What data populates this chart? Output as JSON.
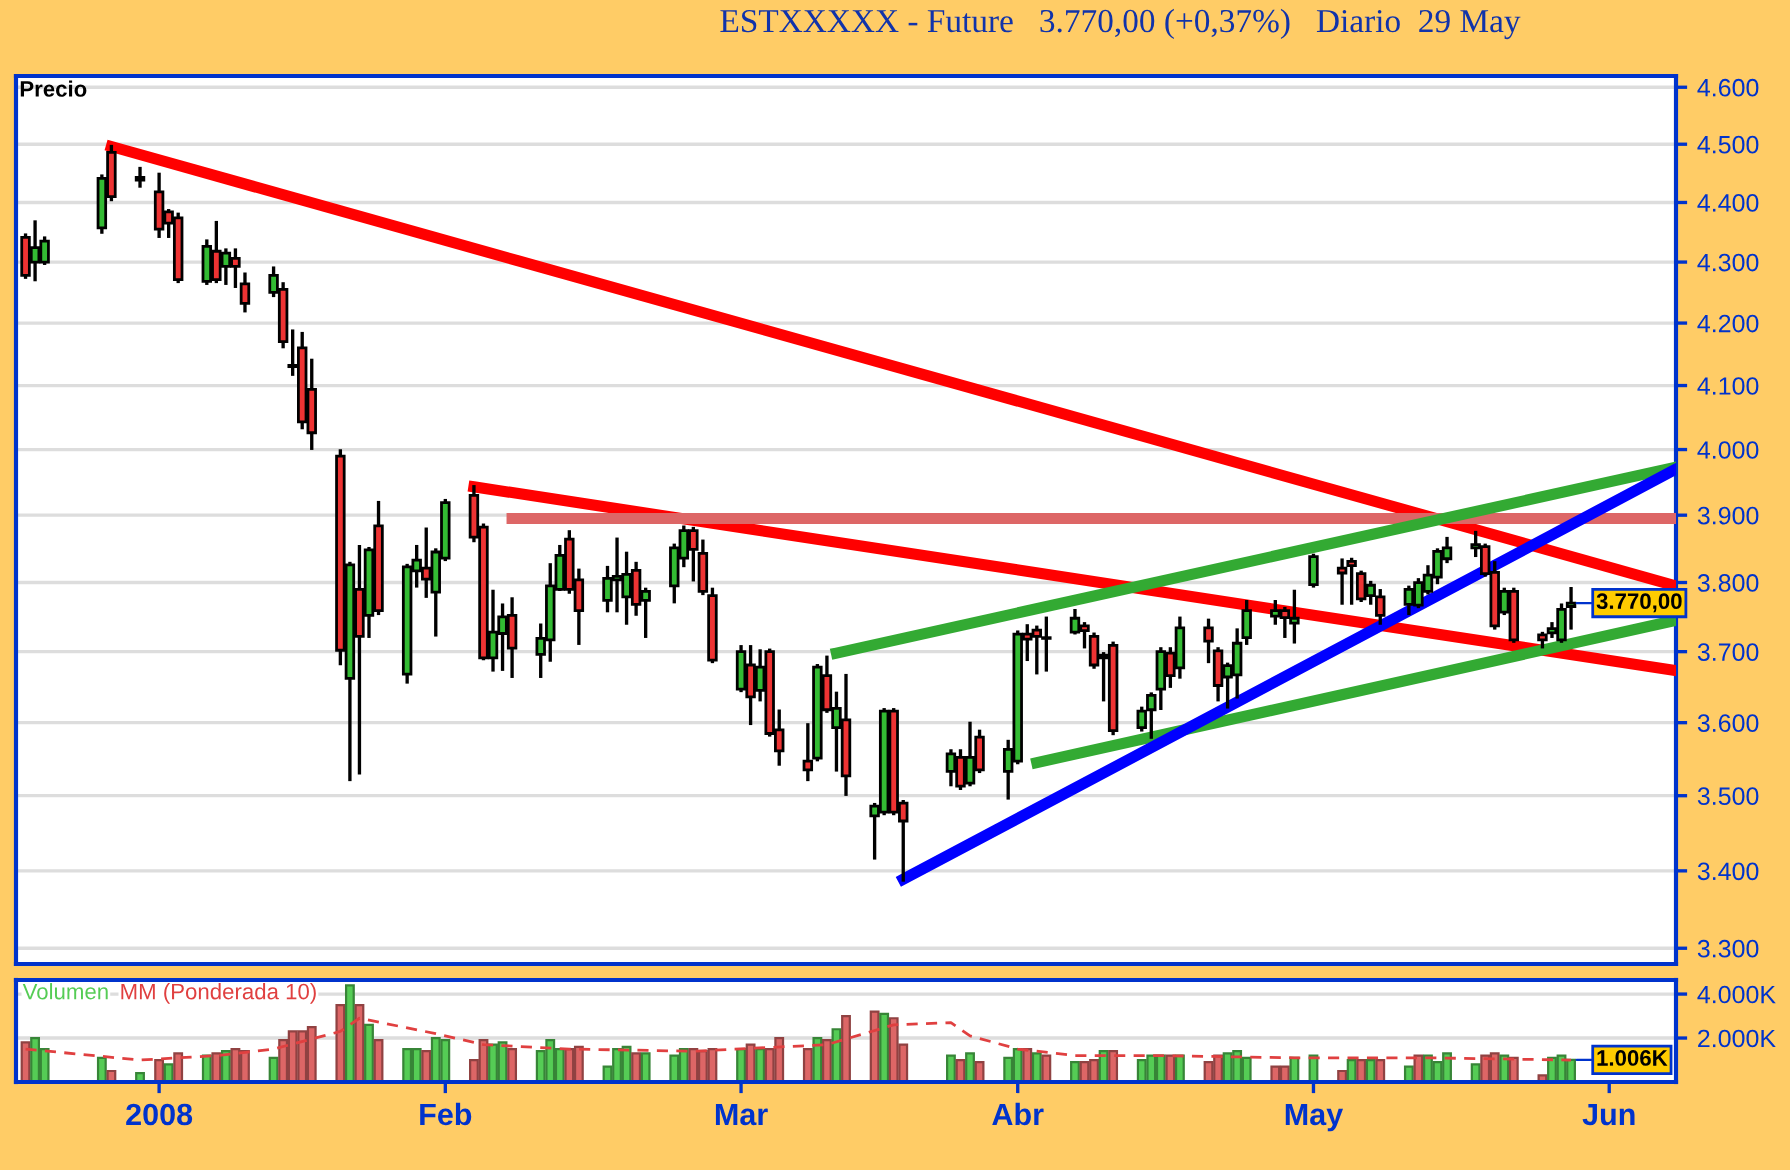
{
  "chart_data": [
    {
      "type": "candlestick",
      "title": "ESTXXXXX - Future   3.770,00 (+0,37%)   Diario  29 May",
      "ylabel": "Precio",
      "log": true,
      "grid": "y",
      "tick_labels": "y",
      "xlim": [
        "2007-12-18",
        "2008-06-09"
      ],
      "ylim": [
        3280,
        4620
      ],
      "yticks": [
        {
          "value": 3300,
          "label": "3.300"
        },
        {
          "value": 3400,
          "label": "3.400"
        },
        {
          "value": 3500,
          "label": "3.500"
        },
        {
          "value": 3600,
          "label": "3.600"
        },
        {
          "value": 3700,
          "label": "3.700"
        },
        {
          "value": 3800,
          "label": "3.800"
        },
        {
          "value": 3900,
          "label": "3.900"
        },
        {
          "value": 4000,
          "label": "4.000"
        },
        {
          "value": 4100,
          "label": "4.100"
        },
        {
          "value": 4200,
          "label": "4.200"
        },
        {
          "value": 4300,
          "label": "4.300"
        },
        {
          "value": 4400,
          "label": "4.400"
        },
        {
          "value": 4500,
          "label": "4.500"
        },
        {
          "value": 4600,
          "label": "4.600"
        }
      ],
      "annotations": [
        {
          "text": "3.770,00",
          "x": "2008-05-29",
          "y": 3770
        }
      ],
      "x": [
        "2007-12-19",
        "2007-12-20",
        "2007-12-21",
        "2007-12-27",
        "2007-12-28",
        "2007-12-31",
        "2008-01-02",
        "2008-01-03",
        "2008-01-04",
        "2008-01-07",
        "2008-01-08",
        "2008-01-09",
        "2008-01-10",
        "2008-01-11",
        "2008-01-14",
        "2008-01-15",
        "2008-01-16",
        "2008-01-17",
        "2008-01-18",
        "2008-01-21",
        "2008-01-22",
        "2008-01-23",
        "2008-01-24",
        "2008-01-25",
        "2008-01-28",
        "2008-01-29",
        "2008-01-30",
        "2008-01-31",
        "2008-02-01",
        "2008-02-04",
        "2008-02-05",
        "2008-02-06",
        "2008-02-07",
        "2008-02-08",
        "2008-02-11",
        "2008-02-12",
        "2008-02-13",
        "2008-02-14",
        "2008-02-15",
        "2008-02-18",
        "2008-02-19",
        "2008-02-20",
        "2008-02-21",
        "2008-02-22",
        "2008-02-25",
        "2008-02-26",
        "2008-02-27",
        "2008-02-28",
        "2008-02-29",
        "2008-03-03",
        "2008-03-04",
        "2008-03-05",
        "2008-03-06",
        "2008-03-07",
        "2008-03-10",
        "2008-03-11",
        "2008-03-12",
        "2008-03-13",
        "2008-03-14",
        "2008-03-17",
        "2008-03-18",
        "2008-03-19",
        "2008-03-20",
        "2008-03-25",
        "2008-03-26",
        "2008-03-27",
        "2008-03-28",
        "2008-03-31",
        "2008-04-01",
        "2008-04-02",
        "2008-04-03",
        "2008-04-04",
        "2008-04-07",
        "2008-04-08",
        "2008-04-09",
        "2008-04-10",
        "2008-04-11",
        "2008-04-14",
        "2008-04-15",
        "2008-04-16",
        "2008-04-17",
        "2008-04-18",
        "2008-04-21",
        "2008-04-22",
        "2008-04-23",
        "2008-04-24",
        "2008-04-25",
        "2008-04-28",
        "2008-04-29",
        "2008-04-30",
        "2008-05-02",
        "2008-05-05",
        "2008-05-06",
        "2008-05-07",
        "2008-05-08",
        "2008-05-09",
        "2008-05-12",
        "2008-05-13",
        "2008-05-14",
        "2008-05-15",
        "2008-05-16",
        "2008-05-19",
        "2008-05-20",
        "2008-05-21",
        "2008-05-22",
        "2008-05-23",
        "2008-05-26",
        "2008-05-27",
        "2008-05-28",
        "2008-05-29"
      ],
      "series": [
        {
          "colors": [
            "#ee3333",
            "#33bb33",
            "#33bb33",
            "#33bb33",
            "#ee3333",
            "#33bb33",
            "#ee3333",
            "#ee3333",
            "#ee3333",
            "#33bb33",
            "#ee3333",
            "#33bb33",
            "#ee3333",
            "#ee3333",
            "#33bb33",
            "#ee3333",
            "#ee3333",
            "#ee3333",
            "#ee3333",
            "#ee3333",
            "#33bb33",
            "#ee3333",
            "#33bb33",
            "#ee3333",
            "#33bb33",
            "#33bb33",
            "#ee3333",
            "#33bb33",
            "#33bb33",
            "#ee3333",
            "#ee3333",
            "#33bb33",
            "#33bb33",
            "#ee3333",
            "#33bb33",
            "#33bb33",
            "#33bb33",
            "#ee3333",
            "#ee3333",
            "#33bb33",
            "#33bb33",
            "#33bb33",
            "#ee3333",
            "#33bb33",
            "#33bb33",
            "#33bb33",
            "#ee3333",
            "#ee3333",
            "#ee3333",
            "#33bb33",
            "#ee3333",
            "#33bb33",
            "#ee3333",
            "#ee3333",
            "#ee3333",
            "#33bb33",
            "#ee3333",
            "#33bb33",
            "#ee3333",
            "#33bb33",
            "#33bb33",
            "#ee3333",
            "#ee3333",
            "#33bb33",
            "#ee3333",
            "#33bb33",
            "#ee3333",
            "#33bb33",
            "#33bb33",
            "#ee3333",
            "#ee3333",
            "#33bb33",
            "#33bb33",
            "#ee3333",
            "#ee3333",
            "#ee3333",
            "#ee3333",
            "#33bb33",
            "#33bb33",
            "#33bb33",
            "#ee3333",
            "#33bb33",
            "#ee3333",
            "#ee3333",
            "#33bb33",
            "#33bb33",
            "#33bb33",
            "#33bb33",
            "#ee3333",
            "#33bb33",
            "#33bb33",
            "#ee3333",
            "#ee3333",
            "#ee3333",
            "#33bb33",
            "#ee3333",
            "#33bb33",
            "#33bb33",
            "#33bb33",
            "#33bb33",
            "#33bb33",
            "#33bb33",
            "#ee3333",
            "#ee3333",
            "#33bb33",
            "#ee3333",
            "#ee3333",
            "#33bb33",
            "#33bb33",
            "#33bb33"
          ],
          "ohlc": [
            [
              4341,
              4345,
              4275,
              4278
            ],
            [
              4300,
              4367,
              4271,
              4324
            ],
            [
              4300,
              4340,
              4298,
              4335
            ],
            [
              4357,
              4445,
              4350,
              4441
            ],
            [
              4486,
              4496,
              4405,
              4410
            ],
            [
              4438,
              4458,
              4428,
              4443
            ],
            [
              4418,
              4448,
              4343,
              4355
            ],
            [
              4384,
              4386,
              4343,
              4365
            ],
            [
              4374,
              4380,
              4268,
              4271
            ],
            [
              4268,
              4335,
              4265,
              4326
            ],
            [
              4318,
              4366,
              4268,
              4271
            ],
            [
              4293,
              4320,
              4265,
              4315
            ],
            [
              4306,
              4320,
              4260,
              4293
            ],
            [
              4264,
              4280,
              4220,
              4232
            ],
            [
              4250,
              4290,
              4245,
              4278
            ],
            [
              4255,
              4264,
              4162,
              4170
            ],
            [
              4132,
              4187,
              4118,
              4130
            ],
            [
              4160,
              4183,
              4034,
              4043
            ],
            [
              4094,
              4140,
              4002,
              4026
            ],
            [
              3990,
              3998,
              3683,
              3702
            ],
            [
              3662,
              3828,
              3522,
              3826
            ],
            [
              3790,
              3853,
              3531,
              3722
            ],
            [
              3752,
              3850,
              3722,
              3848
            ],
            [
              3884,
              3919,
              3755,
              3759
            ],
            [
              3668,
              3825,
              3657,
              3823
            ],
            [
              3817,
              3853,
              3795,
              3833
            ],
            [
              3821,
              3879,
              3780,
              3805
            ],
            [
              3786,
              3848,
              3724,
              3845
            ],
            [
              3836,
              3922,
              3834,
              3919
            ],
            [
              3930,
              3943,
              3862,
              3867
            ],
            [
              3882,
              3885,
              3690,
              3691
            ],
            [
              3691,
              3787,
              3674,
              3728
            ],
            [
              3726,
              3767,
              3675,
              3750
            ],
            [
              3752,
              3776,
              3665,
              3705
            ],
            [
              3696,
              3738,
              3665,
              3719
            ],
            [
              3717,
              3826,
              3688,
              3795
            ],
            [
              3790,
              3853,
              3790,
              3840
            ],
            [
              3864,
              3875,
              3786,
              3790
            ],
            [
              3804,
              3818,
              3712,
              3759
            ],
            [
              3774,
              3822,
              3759,
              3806
            ],
            [
              3804,
              3864,
              3759,
              3809
            ],
            [
              3779,
              3843,
              3741,
              3812
            ],
            [
              3818,
              3828,
              3754,
              3768
            ],
            [
              3774,
              3790,
              3722,
              3787
            ],
            [
              3795,
              3855,
              3772,
              3851
            ],
            [
              3836,
              3882,
              3825,
              3877
            ],
            [
              3877,
              3880,
              3804,
              3849
            ],
            [
              3843,
              3861,
              3784,
              3787
            ],
            [
              3781,
              3790,
              3686,
              3688
            ],
            [
              3647,
              3707,
              3645,
              3700
            ],
            [
              3681,
              3707,
              3599,
              3636
            ],
            [
              3645,
              3701,
              3632,
              3678
            ],
            [
              3700,
              3702,
              3583,
              3585
            ],
            [
              3590,
              3616,
              3543,
              3561
            ],
            [
              3547,
              3597,
              3522,
              3535
            ],
            [
              3551,
              3680,
              3549,
              3678
            ],
            [
              3666,
              3692,
              3616,
              3618
            ],
            [
              3593,
              3641,
              3535,
              3620
            ],
            [
              3604,
              3666,
              3502,
              3527
            ],
            [
              3473,
              3488,
              3417,
              3486
            ],
            [
              3478,
              3618,
              3476,
              3616
            ],
            [
              3616,
              3618,
              3476,
              3478
            ],
            [
              3490,
              3492,
              3388,
              3466
            ],
            [
              3533,
              3561,
              3515,
              3557
            ],
            [
              3552,
              3561,
              3510,
              3513
            ],
            [
              3517,
              3599,
              3515,
              3552
            ],
            [
              3580,
              3588,
              3533,
              3535
            ],
            [
              3533,
              3574,
              3497,
              3563
            ],
            [
              3547,
              3728,
              3545,
              3725
            ],
            [
              3725,
              3737,
              3689,
              3718
            ],
            [
              3731,
              3735,
              3670,
              3722
            ],
            [
              3719,
              3748,
              3674,
              3720
            ],
            [
              3728,
              3759,
              3727,
              3748
            ],
            [
              3737,
              3740,
              3707,
              3730
            ],
            [
              3722,
              3725,
              3678,
              3681
            ],
            [
              3695,
              3697,
              3632,
              3691
            ],
            [
              3709,
              3712,
              3585,
              3589
            ],
            [
              3593,
              3620,
              3590,
              3616
            ],
            [
              3618,
              3640,
              3580,
              3638
            ],
            [
              3647,
              3704,
              3620,
              3700
            ],
            [
              3698,
              3704,
              3651,
              3666
            ],
            [
              3677,
              3748,
              3664,
              3734
            ],
            [
              3734,
              3745,
              3686,
              3715
            ],
            [
              3701,
              3704,
              3632,
              3652
            ],
            [
              3664,
              3682,
              3622,
              3680
            ],
            [
              3667,
              3731,
              3636,
              3712
            ],
            [
              3720,
              3772,
              3712,
              3759
            ],
            [
              3751,
              3772,
              3741,
              3759
            ],
            [
              3759,
              3762,
              3722,
              3749
            ],
            [
              3741,
              3787,
              3714,
              3748
            ],
            [
              3797,
              3840,
              3795,
              3838
            ],
            [
              3821,
              3833,
              3770,
              3814
            ],
            [
              3831,
              3834,
              3770,
              3825
            ],
            [
              3813,
              3815,
              3774,
              3776
            ],
            [
              3781,
              3800,
              3770,
              3796
            ],
            [
              3779,
              3788,
              3741,
              3752
            ],
            [
              3768,
              3793,
              3755,
              3790
            ],
            [
              3767,
              3804,
              3765,
              3800
            ],
            [
              3787,
              3823,
              3785,
              3811
            ],
            [
              3808,
              3848,
              3800,
              3846
            ],
            [
              3835,
              3865,
              3831,
              3851
            ],
            [
              3851,
              3874,
              3840,
              3856
            ],
            [
              3853,
              3855,
              3811,
              3813
            ],
            [
              3815,
              3829,
              3734,
              3737
            ],
            [
              3757,
              3790,
              3755,
              3787
            ],
            [
              3787,
              3790,
              3715,
              3717
            ],
            [
              3724,
              3726,
              3707,
              3717
            ],
            [
              3727,
              3740,
              3722,
              3733
            ],
            [
              3717,
              3767,
              3715,
              3761
            ],
            [
              3765,
              3791,
              3734,
              3770
            ]
          ]
        },
        {
          "type": "line",
          "color": "#ff0000",
          "x": [
            "2007-12-28",
            "2008-06-09"
          ],
          "values": [
            4496,
            3795
          ]
        },
        {
          "type": "line",
          "color": "#ff0000",
          "x": [
            "2008-02-04",
            "2008-06-09"
          ],
          "values": [
            3943,
            3673
          ]
        },
        {
          "type": "line",
          "color": "#dd6666",
          "x": [
            "2008-02-08",
            "2008-06-09"
          ],
          "values": [
            3895,
            3895
          ]
        },
        {
          "type": "line",
          "color": "#33aa33",
          "x": [
            "2008-03-13",
            "2008-06-09"
          ],
          "values": [
            3698,
            3973
          ]
        },
        {
          "type": "line",
          "color": "#33aa33",
          "x": [
            "2008-04-03",
            "2008-06-09"
          ],
          "values": [
            3545,
            3745
          ]
        },
        {
          "type": "line",
          "color": "#0000ff",
          "x": [
            "2008-03-20",
            "2008-06-09"
          ],
          "values": [
            3389,
            3970
          ]
        }
      ]
    },
    {
      "type": "bar",
      "grid": "y",
      "xlim": [
        "2007-12-18",
        "2008-06-09"
      ],
      "ylim": [
        0,
        4640
      ],
      "yticks": [
        {
          "value": 2000,
          "label": "2.000K"
        },
        {
          "value": 4000,
          "label": "4.000K"
        }
      ],
      "xticks": [
        {
          "value": "2008-01-02",
          "label": "2008"
        },
        {
          "value": "2008-02-01",
          "label": "Feb"
        },
        {
          "value": "2008-03-03",
          "label": "Mar"
        },
        {
          "value": "2008-04-01",
          "label": "Abr"
        },
        {
          "value": "2008-05-02",
          "label": "May"
        },
        {
          "value": "2008-06-02",
          "label": "Jun"
        }
      ],
      "annotations": [
        {
          "text": "1.006K",
          "x": "2008-05-29",
          "y": 1006
        }
      ],
      "x": [
        "2007-12-19",
        "2007-12-20",
        "2007-12-21",
        "2007-12-27",
        "2007-12-28",
        "2007-12-31",
        "2008-01-02",
        "2008-01-03",
        "2008-01-04",
        "2008-01-07",
        "2008-01-08",
        "2008-01-09",
        "2008-01-10",
        "2008-01-11",
        "2008-01-14",
        "2008-01-15",
        "2008-01-16",
        "2008-01-17",
        "2008-01-18",
        "2008-01-21",
        "2008-01-22",
        "2008-01-23",
        "2008-01-24",
        "2008-01-25",
        "2008-01-28",
        "2008-01-29",
        "2008-01-30",
        "2008-01-31",
        "2008-02-01",
        "2008-02-04",
        "2008-02-05",
        "2008-02-06",
        "2008-02-07",
        "2008-02-08",
        "2008-02-11",
        "2008-02-12",
        "2008-02-13",
        "2008-02-14",
        "2008-02-15",
        "2008-02-18",
        "2008-02-19",
        "2008-02-20",
        "2008-02-21",
        "2008-02-22",
        "2008-02-25",
        "2008-02-26",
        "2008-02-27",
        "2008-02-28",
        "2008-02-29",
        "2008-03-03",
        "2008-03-04",
        "2008-03-05",
        "2008-03-06",
        "2008-03-07",
        "2008-03-10",
        "2008-03-11",
        "2008-03-12",
        "2008-03-13",
        "2008-03-14",
        "2008-03-17",
        "2008-03-18",
        "2008-03-19",
        "2008-03-20",
        "2008-03-25",
        "2008-03-26",
        "2008-03-27",
        "2008-03-28",
        "2008-03-31",
        "2008-04-01",
        "2008-04-02",
        "2008-04-03",
        "2008-04-04",
        "2008-04-07",
        "2008-04-08",
        "2008-04-09",
        "2008-04-10",
        "2008-04-11",
        "2008-04-14",
        "2008-04-15",
        "2008-04-16",
        "2008-04-17",
        "2008-04-18",
        "2008-04-21",
        "2008-04-22",
        "2008-04-23",
        "2008-04-24",
        "2008-04-25",
        "2008-04-28",
        "2008-04-29",
        "2008-04-30",
        "2008-05-02",
        "2008-05-05",
        "2008-05-06",
        "2008-05-07",
        "2008-05-08",
        "2008-05-09",
        "2008-05-12",
        "2008-05-13",
        "2008-05-14",
        "2008-05-15",
        "2008-05-16",
        "2008-05-19",
        "2008-05-20",
        "2008-05-21",
        "2008-05-22",
        "2008-05-23",
        "2008-05-26",
        "2008-05-27",
        "2008-05-28",
        "2008-05-29"
      ],
      "series": [
        {
          "name": "Volumen",
          "color": "#55cc55",
          "colors": [
            "#dd6666",
            "#55cc55",
            "#55cc55",
            "#55cc55",
            "#dd6666",
            "#55cc55",
            "#dd6666",
            "#55cc55",
            "#dd6666",
            "#55cc55",
            "#dd6666",
            "#55cc55",
            "#dd6666",
            "#dd6666",
            "#55cc55",
            "#dd6666",
            "#dd6666",
            "#dd6666",
            "#dd6666",
            "#dd6666",
            "#55cc55",
            "#dd6666",
            "#55cc55",
            "#dd6666",
            "#55cc55",
            "#55cc55",
            "#dd6666",
            "#55cc55",
            "#55cc55",
            "#dd6666",
            "#dd6666",
            "#55cc55",
            "#55cc55",
            "#dd6666",
            "#55cc55",
            "#55cc55",
            "#55cc55",
            "#dd6666",
            "#dd6666",
            "#55cc55",
            "#55cc55",
            "#55cc55",
            "#dd6666",
            "#55cc55",
            "#55cc55",
            "#55cc55",
            "#dd6666",
            "#dd6666",
            "#dd6666",
            "#55cc55",
            "#dd6666",
            "#55cc55",
            "#dd6666",
            "#dd6666",
            "#dd6666",
            "#55cc55",
            "#dd6666",
            "#55cc55",
            "#dd6666",
            "#dd6666",
            "#55cc55",
            "#dd6666",
            "#dd6666",
            "#55cc55",
            "#dd6666",
            "#55cc55",
            "#dd6666",
            "#55cc55",
            "#55cc55",
            "#dd6666",
            "#55cc55",
            "#dd6666",
            "#55cc55",
            "#dd6666",
            "#dd6666",
            "#55cc55",
            "#dd6666",
            "#55cc55",
            "#55cc55",
            "#55cc55",
            "#dd6666",
            "#55cc55",
            "#dd6666",
            "#dd6666",
            "#55cc55",
            "#55cc55",
            "#55cc55",
            "#dd6666",
            "#dd6666",
            "#55cc55",
            "#55cc55",
            "#dd6666",
            "#55cc55",
            "#dd6666",
            "#55cc55",
            "#dd6666",
            "#55cc55",
            "#dd6666",
            "#55cc55",
            "#55cc55",
            "#55cc55",
            "#55cc55",
            "#dd6666",
            "#dd6666",
            "#55cc55",
            "#dd6666",
            "#dd6666",
            "#55cc55",
            "#55cc55",
            "#55cc55"
          ],
          "values": [
            1800,
            2000,
            1500,
            1100,
            500,
            400,
            1000,
            800,
            1300,
            1200,
            1300,
            1400,
            1500,
            1400,
            1100,
            1900,
            2300,
            2300,
            2500,
            3500,
            4400,
            3500,
            2600,
            1900,
            1500,
            1500,
            1400,
            2000,
            1900,
            1000,
            1900,
            1700,
            1800,
            1500,
            1400,
            1900,
            1500,
            1500,
            1600,
            700,
            1500,
            1600,
            1300,
            1300,
            1200,
            1500,
            1500,
            1400,
            1500,
            1500,
            1700,
            1500,
            1500,
            2000,
            1500,
            2000,
            1900,
            2400,
            3000,
            3200,
            3100,
            2900,
            1700,
            1200,
            1000,
            1300,
            900,
            1100,
            1500,
            1500,
            1300,
            1200,
            900,
            900,
            1000,
            1400,
            1400,
            1000,
            1200,
            1200,
            1200,
            1200,
            900,
            1200,
            1300,
            1400,
            1100,
            700,
            700,
            1100,
            1200,
            500,
            1000,
            1000,
            1000,
            1000,
            700,
            1200,
            1200,
            900,
            1300,
            800,
            1200,
            1300,
            1200,
            1100,
            300,
            1100,
            1200,
            1006
          ]
        },
        {
          "name": "MM (Ponderada 10)",
          "type": "line",
          "color": "#e04040",
          "line_style": "dashed",
          "x": [
            "2007-12-19",
            "2007-12-31",
            "2008-01-08",
            "2008-01-14",
            "2008-01-21",
            "2008-01-23",
            "2008-01-31",
            "2008-02-05",
            "2008-02-14",
            "2008-02-27",
            "2008-03-12",
            "2008-03-19",
            "2008-03-25",
            "2008-03-27",
            "2008-04-01",
            "2008-04-07",
            "2008-04-16",
            "2008-04-30",
            "2008-05-14",
            "2008-05-29"
          ],
          "values": [
            1500,
            1000,
            1200,
            1500,
            2300,
            2900,
            2200,
            1700,
            1500,
            1400,
            1700,
            2600,
            2700,
            2100,
            1500,
            1200,
            1200,
            1100,
            1100,
            1000
          ]
        }
      ]
    }
  ]
}
